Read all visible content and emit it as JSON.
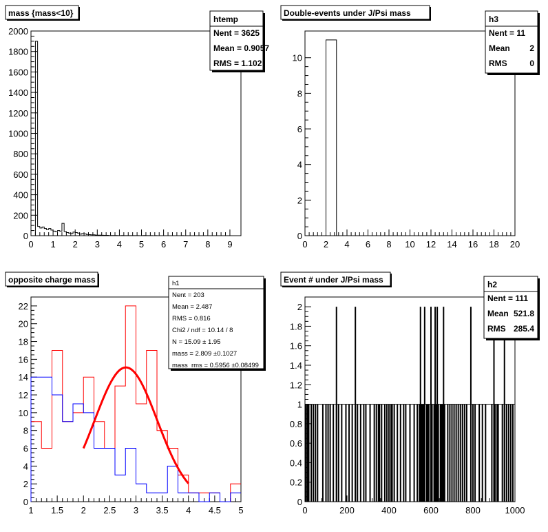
{
  "chart_data": [
    {
      "type": "bar",
      "title": "mass {mass<10}",
      "xlim": [
        0,
        9.5
      ],
      "ylim": [
        0,
        2000
      ],
      "x_ticks": [
        0,
        1,
        2,
        3,
        4,
        5,
        6,
        7,
        8,
        9
      ],
      "y_ticks": [
        0,
        200,
        400,
        600,
        800,
        1000,
        1200,
        1400,
        1600,
        1800,
        2000
      ],
      "bin_width": 0.1,
      "bin_start": 0,
      "values": [
        0,
        0,
        1900,
        90,
        75,
        85,
        70,
        60,
        70,
        55,
        45,
        40,
        50,
        45,
        120,
        40,
        30,
        25,
        20,
        35,
        30,
        25,
        15,
        20,
        18,
        12,
        10,
        8,
        8,
        6,
        5,
        5,
        4,
        3,
        3,
        2,
        2,
        2,
        2,
        1,
        1,
        2,
        1,
        1,
        1,
        1,
        1,
        1,
        1,
        0,
        1,
        2,
        1,
        1,
        1,
        0,
        1,
        0,
        0,
        0,
        0,
        0,
        0,
        0,
        0,
        0,
        0,
        0,
        1,
        0,
        0,
        0,
        0,
        0,
        0,
        0,
        0,
        0,
        0,
        0,
        0,
        0,
        0,
        0,
        0,
        0,
        0,
        0,
        0,
        0,
        0,
        0,
        0,
        0,
        0
      ],
      "stats": {
        "name": "htemp",
        "rows": [
          {
            "label": "Nent = 3625",
            "value": ""
          },
          {
            "label": "Mean  = 0.9057",
            "value": ""
          },
          {
            "label": "RMS   = 1.102",
            "value": ""
          }
        ]
      }
    },
    {
      "type": "bar",
      "title": "Double-events under J/Psi mass",
      "xlim": [
        0,
        20
      ],
      "ylim": [
        0,
        11.5
      ],
      "x_ticks": [
        0,
        2,
        4,
        6,
        8,
        10,
        12,
        14,
        16,
        18,
        20
      ],
      "y_ticks": [
        0,
        2,
        4,
        6,
        8,
        10
      ],
      "bars": [
        {
          "x0": 2,
          "x1": 3,
          "value": 11
        }
      ],
      "stats": {
        "name": "h3",
        "rows": [
          {
            "label": "Nent = 11",
            "value": ""
          },
          {
            "label": "Mean",
            "value": "2"
          },
          {
            "label": "RMS",
            "value": "0"
          }
        ]
      }
    },
    {
      "type": "line",
      "title": "opposite charge mass",
      "xlim": [
        1,
        5
      ],
      "ylim": [
        0,
        23
      ],
      "x_ticks": [
        "1",
        "1.5",
        "2",
        "2.5",
        "3",
        "3.5",
        "4",
        "4.5",
        "5"
      ],
      "y_ticks": [
        0,
        2,
        4,
        6,
        8,
        10,
        12,
        14,
        16,
        18,
        20,
        22
      ],
      "bin_edges": [
        1,
        1.2,
        1.4,
        1.6,
        1.8,
        2,
        2.2,
        2.4,
        2.6,
        2.8,
        3,
        3.2,
        3.4,
        3.6,
        3.8,
        4,
        4.2,
        4.4,
        4.6,
        4.8,
        5
      ],
      "series": [
        {
          "values": [
            9,
            6,
            17,
            9,
            10,
            14,
            9,
            6,
            13,
            22,
            11,
            17,
            8,
            6,
            3,
            1,
            1,
            1,
            0,
            2
          ],
          "color": "#ff0000"
        },
        {
          "values": [
            14,
            14,
            12,
            9,
            11,
            10,
            6,
            6,
            3,
            6,
            2,
            1,
            1,
            4,
            1,
            1,
            0,
            1,
            0,
            1
          ],
          "color": "#0000ff"
        }
      ],
      "fit": {
        "N": 15.09,
        "mean": 2.809,
        "sigma": 0.5956,
        "xmin": 2.0,
        "xmax": 4.0,
        "color": "#ff0000"
      },
      "stats": {
        "name": "h1",
        "rows": [
          {
            "label": "Nent = 203",
            "value": ""
          },
          {
            "label": "Mean  = 2.487",
            "value": ""
          },
          {
            "label": "RMS   = 0.816",
            "value": ""
          },
          {
            "label": "Chi2 / ndf = 10.14 / 8",
            "value": ""
          },
          {
            "label": "N       = 15.09   ± 1.95",
            "value": ""
          },
          {
            "label": "mass     = 2.809   ±0.1027",
            "value": ""
          },
          {
            "label": "mass_rms = 0.5956   ±0.08499",
            "value": ""
          }
        ]
      }
    },
    {
      "type": "bar",
      "title": "Event # under J/Psi mass",
      "xlim": [
        0,
        1000
      ],
      "ylim": [
        0,
        2.1
      ],
      "x_ticks": [
        0,
        200,
        400,
        600,
        800,
        1000
      ],
      "y_ticks": [
        "0",
        "0.2",
        "0.4",
        "0.6",
        "0.8",
        "1",
        "1.2",
        "1.4",
        "1.6",
        "1.8",
        "2"
      ],
      "spikes_x": [
        5,
        12,
        18,
        30,
        40,
        50,
        60,
        85,
        100,
        110,
        120,
        135,
        150,
        160,
        175,
        195,
        210,
        225,
        240,
        250,
        265,
        280,
        290,
        310,
        330,
        340,
        350,
        355,
        365,
        380,
        390,
        400,
        410,
        415,
        425,
        440,
        455,
        470,
        480,
        500,
        520,
        535,
        545,
        550,
        555,
        560,
        565,
        570,
        580,
        585,
        590,
        600,
        605,
        615,
        620,
        625,
        630,
        635,
        645,
        650,
        655,
        665,
        680,
        690,
        700,
        710,
        720,
        730,
        740,
        750,
        760,
        770,
        790,
        800,
        810,
        830,
        845,
        860,
        890,
        900,
        905,
        915,
        920,
        940,
        950,
        960,
        970,
        980,
        990
      ],
      "spikes_value": 1,
      "double_x": [
        150,
        240,
        550,
        570,
        600,
        620,
        630,
        660,
        790,
        900,
        950
      ],
      "stats": {
        "name": "h2",
        "rows": [
          {
            "label": "Nent = 111",
            "value": ""
          },
          {
            "label": "Mean",
            "value": "521.8"
          },
          {
            "label": "RMS",
            "value": "285.4"
          }
        ]
      }
    }
  ]
}
